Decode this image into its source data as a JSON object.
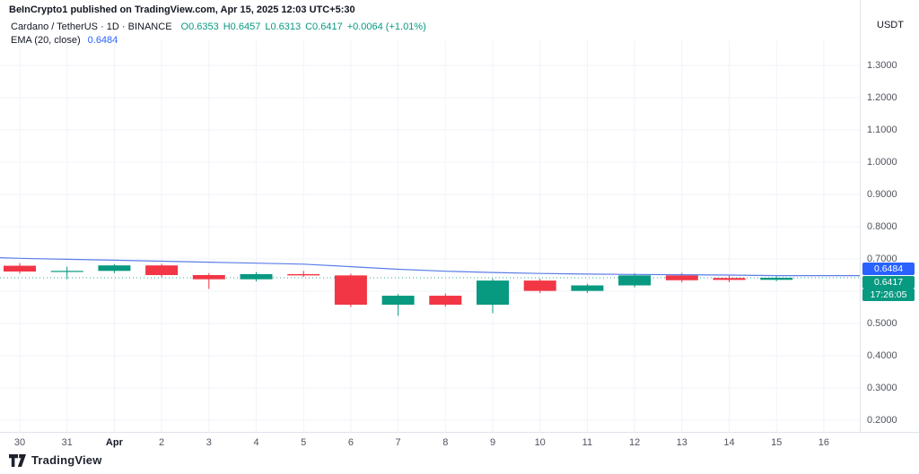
{
  "header": {
    "attribution": "BeInCrypto1 published on TradingView.com, Apr 15, 2025 12:03 UTC+5:30",
    "symbol_line": {
      "title": "Cardano / TetherUS · 1D · BINANCE",
      "open": "O0.6353",
      "high": "H0.6457",
      "low": "L0.6313",
      "close": "C0.6417",
      "change": "+0.0064 (+1.01%)"
    },
    "indicator_line": {
      "label": "EMA (20, close)",
      "value": "0.6484"
    }
  },
  "price_axis": {
    "unit": "USDT",
    "ticks": [
      "1.3000",
      "1.2000",
      "1.1000",
      "1.0000",
      "0.9000",
      "0.8000",
      "0.7000",
      "0.5000",
      "0.4000",
      "0.3000",
      "0.2000"
    ],
    "badges": [
      {
        "name": "ema-value-badge",
        "text": "0.6484",
        "bg": "#2962ff"
      },
      {
        "name": "last-price-badge",
        "text": "0.6417",
        "bg": "#089981"
      },
      {
        "name": "countdown-badge",
        "text": "17:26:05",
        "bg": "#089981"
      }
    ]
  },
  "time_axis": {
    "labels": [
      "30",
      "31",
      "Apr",
      "2",
      "3",
      "4",
      "5",
      "6",
      "7",
      "8",
      "9",
      "10",
      "11",
      "12",
      "13",
      "14",
      "15",
      "16"
    ],
    "bold_label": "Apr"
  },
  "footer": {
    "logo_icon": "tradingview-logo",
    "brand": "TradingView"
  },
  "colors": {
    "up": "#089981",
    "down": "#f23645",
    "ema_line": "#5b7de8",
    "ema_badge": "#2962ff",
    "grid": "#f0f3fa",
    "axis_border": "#e0e3eb",
    "text": "#131722"
  },
  "chart_data": {
    "type": "candlestick",
    "title": "Cardano / TetherUS · 1D · BINANCE",
    "ylabel": "USDT",
    "ylim": [
      0.2,
      1.3
    ],
    "grid": true,
    "x": [
      "Mar 30",
      "Mar 31",
      "Apr 1",
      "Apr 2",
      "Apr 3",
      "Apr 4",
      "Apr 5",
      "Apr 6",
      "Apr 7",
      "Apr 8",
      "Apr 9",
      "Apr 10",
      "Apr 11",
      "Apr 12",
      "Apr 13",
      "Apr 14",
      "Apr 15"
    ],
    "candles": [
      {
        "o": 0.679,
        "h": 0.687,
        "l": 0.654,
        "c": 0.661
      },
      {
        "o": 0.661,
        "h": 0.676,
        "l": 0.637,
        "c": 0.663
      },
      {
        "o": 0.663,
        "h": 0.684,
        "l": 0.656,
        "c": 0.68
      },
      {
        "o": 0.68,
        "h": 0.685,
        "l": 0.644,
        "c": 0.65
      },
      {
        "o": 0.65,
        "h": 0.656,
        "l": 0.607,
        "c": 0.637
      },
      {
        "o": 0.637,
        "h": 0.659,
        "l": 0.631,
        "c": 0.653
      },
      {
        "o": 0.653,
        "h": 0.663,
        "l": 0.644,
        "c": 0.649
      },
      {
        "o": 0.649,
        "h": 0.654,
        "l": 0.551,
        "c": 0.558
      },
      {
        "o": 0.558,
        "h": 0.591,
        "l": 0.524,
        "c": 0.586
      },
      {
        "o": 0.586,
        "h": 0.593,
        "l": 0.552,
        "c": 0.558
      },
      {
        "o": 0.558,
        "h": 0.639,
        "l": 0.532,
        "c": 0.633
      },
      {
        "o": 0.633,
        "h": 0.639,
        "l": 0.594,
        "c": 0.601
      },
      {
        "o": 0.601,
        "h": 0.623,
        "l": 0.595,
        "c": 0.618
      },
      {
        "o": 0.618,
        "h": 0.656,
        "l": 0.612,
        "c": 0.649
      },
      {
        "o": 0.649,
        "h": 0.657,
        "l": 0.627,
        "c": 0.634
      },
      {
        "o": 0.641,
        "h": 0.648,
        "l": 0.628,
        "c": 0.635
      },
      {
        "o": 0.6353,
        "h": 0.6457,
        "l": 0.6313,
        "c": 0.6417
      }
    ],
    "series": [
      {
        "name": "EMA (20, close)",
        "values": [
          0.702,
          0.699,
          0.696,
          0.693,
          0.69,
          0.687,
          0.684,
          0.676,
          0.668,
          0.662,
          0.658,
          0.655,
          0.653,
          0.652,
          0.651,
          0.65,
          0.6484
        ]
      }
    ],
    "last_price": 0.6417,
    "ema_last": 0.6484,
    "countdown": "17:26:05",
    "legend_position": "top-left"
  }
}
